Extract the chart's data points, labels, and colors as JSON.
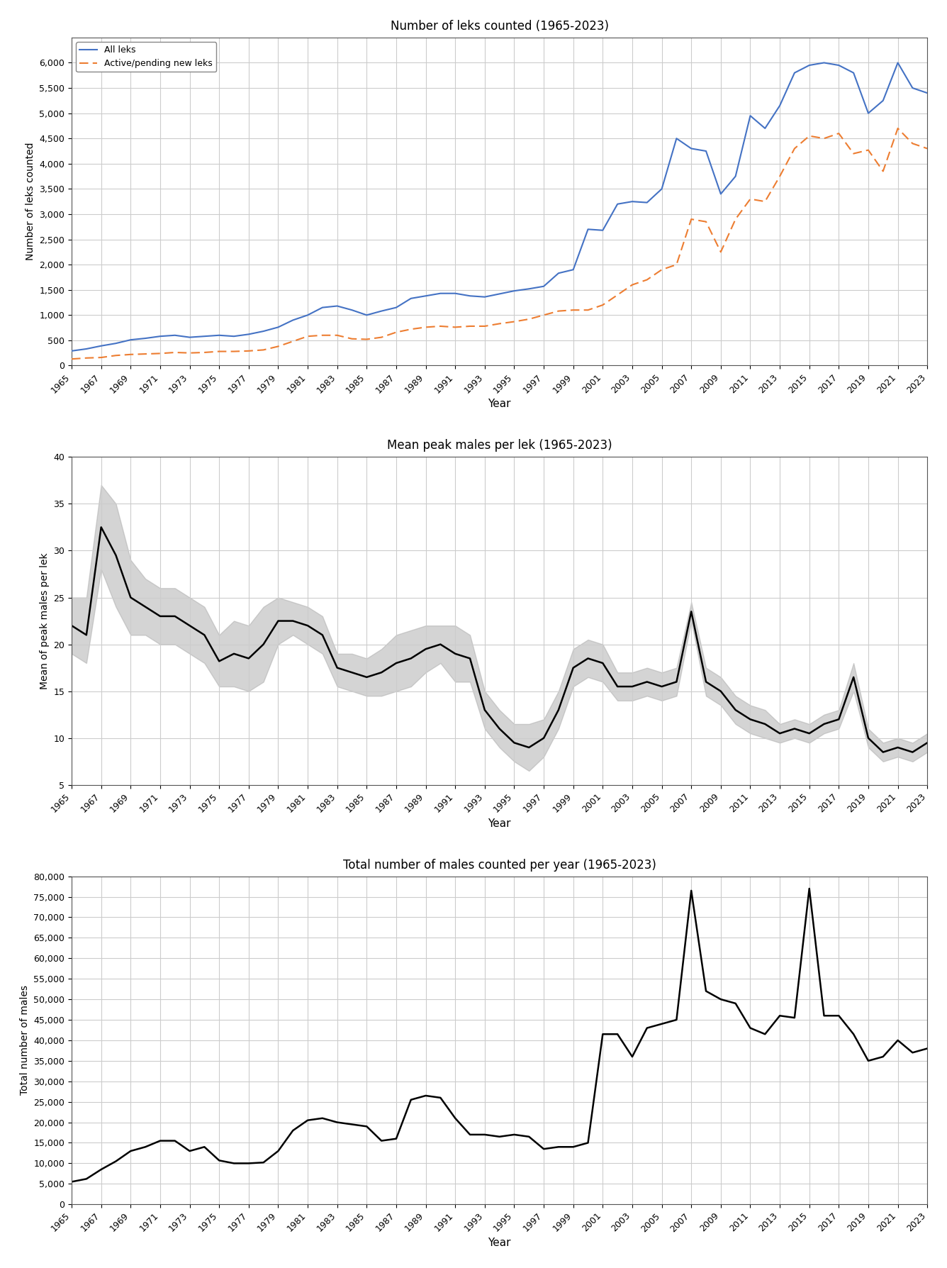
{
  "years": [
    1965,
    1966,
    1967,
    1968,
    1969,
    1970,
    1971,
    1972,
    1973,
    1974,
    1975,
    1976,
    1977,
    1978,
    1979,
    1980,
    1981,
    1982,
    1983,
    1984,
    1985,
    1986,
    1987,
    1988,
    1989,
    1990,
    1991,
    1992,
    1993,
    1994,
    1995,
    1996,
    1997,
    1998,
    1999,
    2000,
    2001,
    2002,
    2003,
    2004,
    2005,
    2006,
    2007,
    2008,
    2009,
    2010,
    2011,
    2012,
    2013,
    2014,
    2015,
    2016,
    2017,
    2018,
    2019,
    2020,
    2021,
    2022,
    2023
  ],
  "all_leks": [
    290,
    330,
    390,
    440,
    510,
    540,
    580,
    600,
    560,
    580,
    600,
    580,
    620,
    680,
    760,
    900,
    1000,
    1150,
    1180,
    1100,
    1000,
    1080,
    1150,
    1330,
    1380,
    1430,
    1430,
    1380,
    1360,
    1420,
    1480,
    1520,
    1570,
    1830,
    1900,
    2700,
    2680,
    3200,
    3250,
    3230,
    3500,
    4500,
    4300,
    4250,
    3400,
    3750,
    4950,
    4700,
    5150,
    5800,
    5950,
    6000,
    5950,
    5800,
    5000,
    5250,
    6000,
    5500,
    5400
  ],
  "active_leks": [
    130,
    150,
    160,
    200,
    220,
    230,
    240,
    260,
    250,
    260,
    280,
    280,
    290,
    310,
    380,
    480,
    580,
    600,
    600,
    530,
    520,
    560,
    660,
    720,
    760,
    780,
    760,
    780,
    780,
    830,
    870,
    920,
    1000,
    1080,
    1100,
    1100,
    1200,
    1400,
    1600,
    1700,
    1900,
    2000,
    2900,
    2850,
    2250,
    2900,
    3300,
    3250,
    3750,
    4300,
    4550,
    4500,
    4600,
    4200,
    4270,
    3850,
    4700,
    4400,
    4300
  ],
  "mean_peak": [
    22.0,
    21.0,
    32.5,
    29.5,
    25.0,
    24.0,
    23.0,
    23.0,
    22.0,
    21.0,
    18.2,
    19.0,
    18.5,
    20.0,
    22.5,
    22.5,
    22.0,
    21.0,
    17.5,
    17.0,
    16.5,
    17.0,
    18.0,
    18.5,
    19.5,
    20.0,
    19.0,
    18.5,
    13.0,
    11.0,
    9.5,
    9.0,
    10.0,
    13.0,
    17.5,
    18.5,
    18.0,
    15.5,
    15.5,
    16.0,
    15.5,
    16.0,
    23.5,
    16.0,
    15.0,
    13.0,
    12.0,
    11.5,
    10.5,
    11.0,
    10.5,
    11.5,
    12.0,
    16.5,
    10.0,
    8.5,
    9.0,
    8.5,
    9.5
  ],
  "mean_peak_upper": [
    25.0,
    25.0,
    37.0,
    35.0,
    29.0,
    27.0,
    26.0,
    26.0,
    25.0,
    24.0,
    21.0,
    22.5,
    22.0,
    24.0,
    25.0,
    24.5,
    24.0,
    23.0,
    19.0,
    19.0,
    18.5,
    19.5,
    21.0,
    21.5,
    22.0,
    22.0,
    22.0,
    21.0,
    15.0,
    13.0,
    11.5,
    11.5,
    12.0,
    15.0,
    19.5,
    20.5,
    20.0,
    17.0,
    17.0,
    17.5,
    17.0,
    17.5,
    24.5,
    17.5,
    16.5,
    14.5,
    13.5,
    13.0,
    11.5,
    12.0,
    11.5,
    12.5,
    13.0,
    18.0,
    11.0,
    9.5,
    10.0,
    9.5,
    10.5
  ],
  "mean_peak_lower": [
    19.0,
    18.0,
    28.0,
    24.0,
    21.0,
    21.0,
    20.0,
    20.0,
    19.0,
    18.0,
    15.5,
    15.5,
    15.0,
    16.0,
    20.0,
    21.0,
    20.0,
    19.0,
    15.5,
    15.0,
    14.5,
    14.5,
    15.0,
    15.5,
    17.0,
    18.0,
    16.0,
    16.0,
    11.0,
    9.0,
    7.5,
    6.5,
    8.0,
    11.0,
    15.5,
    16.5,
    16.0,
    14.0,
    14.0,
    14.5,
    14.0,
    14.5,
    22.5,
    14.5,
    13.5,
    11.5,
    10.5,
    10.0,
    9.5,
    10.0,
    9.5,
    10.5,
    11.0,
    15.0,
    9.0,
    7.5,
    8.0,
    7.5,
    8.5
  ],
  "total_males": [
    5500,
    6200,
    8500,
    10500,
    13000,
    14000,
    15500,
    15500,
    13000,
    14000,
    10700,
    10000,
    10000,
    10200,
    13000,
    18000,
    20500,
    21000,
    20000,
    19500,
    19000,
    15500,
    16000,
    25500,
    26500,
    26000,
    21000,
    17000,
    17000,
    16500,
    17000,
    16500,
    13500,
    14000,
    14000,
    15000,
    41500,
    41500,
    36000,
    43000,
    44000,
    45000,
    76500,
    52000,
    50000,
    49000,
    43000,
    41500,
    46000,
    45500,
    77000,
    46000,
    46000,
    41500,
    35000,
    36000,
    40000,
    37000,
    38000
  ],
  "title1": "Number of leks counted (1965-2023)",
  "title2": "Mean peak males per lek (1965-2023)",
  "title3": "Total number of males counted per year (1965-2023)",
  "ylabel1": "Number of leks counted",
  "ylabel2": "Mean of peak males per lek",
  "ylabel3": "Total number of males",
  "xlabel": "Year",
  "legend1": "All leks",
  "legend2": "Active/pending new leks",
  "color_all": "#4472C4",
  "color_active": "#ED7D31",
  "color_mean": "#000000",
  "color_shade": "#AAAAAA",
  "bg_color": "#FFFFFF",
  "grid_color": "#CCCCCC"
}
